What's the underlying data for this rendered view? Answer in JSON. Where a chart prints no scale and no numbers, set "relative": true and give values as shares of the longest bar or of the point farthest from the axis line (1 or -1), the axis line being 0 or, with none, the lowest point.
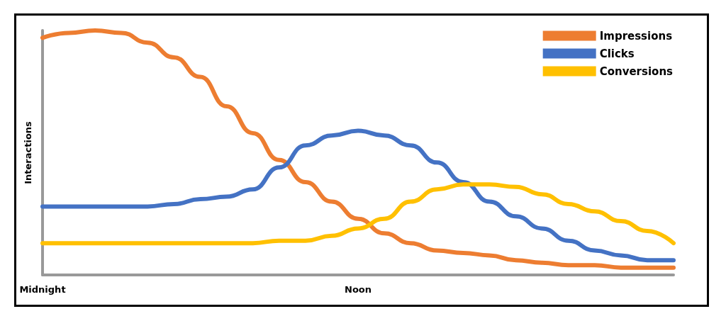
{
  "chart_data": {
    "type": "line",
    "relative": true,
    "ylabel": "Interactions",
    "categories": [
      "Midnight",
      null,
      null,
      null,
      null,
      null,
      null,
      null,
      null,
      null,
      null,
      null,
      "Noon",
      null,
      null,
      null,
      null,
      null,
      null,
      null,
      null,
      null,
      null,
      null,
      null
    ],
    "series": [
      {
        "name": "Impressions",
        "color": "#ed7d31",
        "values": [
          0.97,
          0.99,
          1,
          0.99,
          0.95,
          0.89,
          0.81,
          0.69,
          0.58,
          0.47,
          0.38,
          0.3,
          0.23,
          0.17,
          0.13,
          0.1,
          0.09,
          0.08,
          0.06,
          0.05,
          0.04,
          0.04,
          0.03,
          0.03,
          0.03
        ]
      },
      {
        "name": "Clicks",
        "color": "#4472c4",
        "values": [
          0.28,
          0.28,
          0.28,
          0.28,
          0.28,
          0.29,
          0.31,
          0.32,
          0.35,
          0.44,
          0.53,
          0.57,
          0.59,
          0.57,
          0.53,
          0.46,
          0.38,
          0.3,
          0.24,
          0.19,
          0.14,
          0.1,
          0.08,
          0.06,
          0.06
        ]
      },
      {
        "name": "Conversions",
        "color": "#ffc000",
        "values": [
          0.13,
          0.13,
          0.13,
          0.13,
          0.13,
          0.13,
          0.13,
          0.13,
          0.13,
          0.14,
          0.14,
          0.16,
          0.19,
          0.23,
          0.3,
          0.35,
          0.37,
          0.37,
          0.36,
          0.33,
          0.29,
          0.26,
          0.22,
          0.18,
          0.13
        ]
      }
    ],
    "legend": "top right",
    "grid": false,
    "marker": "none",
    "line_style": "solid"
  }
}
